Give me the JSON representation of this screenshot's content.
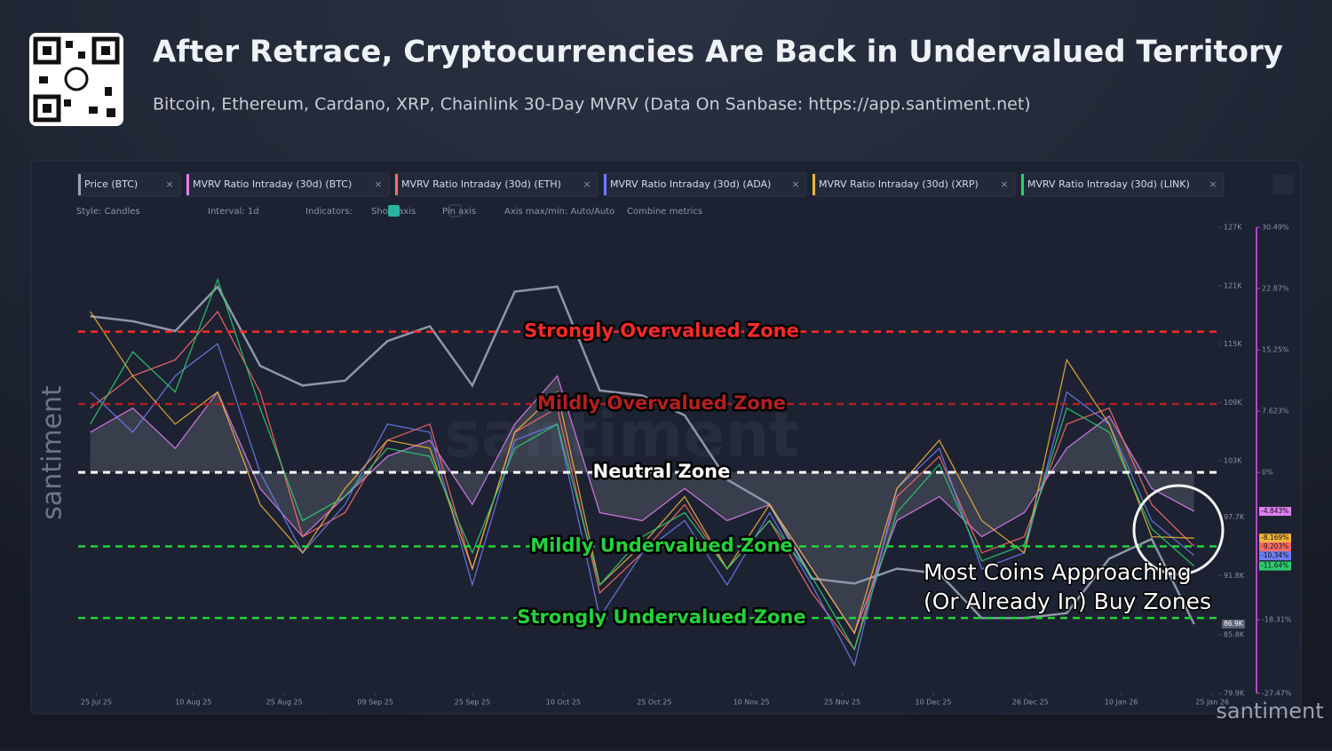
{
  "header": {
    "title": "After Retrace, Cryptocurrencies Are Back in Undervalued Territory",
    "subtitle": "Bitcoin, Ethereum, Cardano, XRP, Chainlink 30-Day MVRV (Data On Sanbase: https://app.santiment.net)"
  },
  "toolbar": [
    "Style: Candles",
    "Interval: 1d",
    "Indicators:",
    "Show axis",
    "Pin axis",
    "Axis max/min: Auto/Auto",
    "Combine metrics"
  ],
  "watermark": "santiment",
  "annotation": [
    "Most Coins Approaching",
    "(Or Already In) Buy Zones"
  ],
  "chart_data": {
    "type": "line",
    "x": [
      "2025-07-24",
      "2025-07-31",
      "2025-08-07",
      "2025-08-14",
      "2025-08-21",
      "2025-08-28",
      "2025-09-04",
      "2025-09-11",
      "2025-09-18",
      "2025-09-25",
      "2025-10-02",
      "2025-10-09",
      "2025-10-16",
      "2025-10-23",
      "2025-10-30",
      "2025-11-06",
      "2025-11-13",
      "2025-11-20",
      "2025-11-27",
      "2025-12-04",
      "2025-12-11",
      "2025-12-18",
      "2025-12-25",
      "2026-01-01",
      "2026-01-08",
      "2026-01-15",
      "2026-01-22"
    ],
    "xlim": [
      "2025-07-22",
      "2026-01-26"
    ],
    "xticks": [
      {
        "value": "2025-07-25",
        "label": "25 Jul 25"
      },
      {
        "value": "2025-08-10",
        "label": "10 Aug 25"
      },
      {
        "value": "2025-08-25",
        "label": "25 Aug 25"
      },
      {
        "value": "2025-09-09",
        "label": "09 Sep 25"
      },
      {
        "value": "2025-09-25",
        "label": "25 Sep 25"
      },
      {
        "value": "2025-10-10",
        "label": "10 Oct 25"
      },
      {
        "value": "2025-10-25",
        "label": "25 Oct 25"
      },
      {
        "value": "2025-11-10",
        "label": "10 Nov 25"
      },
      {
        "value": "2025-11-25",
        "label": "25 Nov 25"
      },
      {
        "value": "2025-12-10",
        "label": "10 Dec 25"
      },
      {
        "value": "2025-12-26",
        "label": "26 Dec 25"
      },
      {
        "value": "2026-01-10",
        "label": "10 Jan 26"
      },
      {
        "value": "2026-01-25",
        "label": "25 Jan 26"
      }
    ],
    "ylim": [
      79900,
      127000
    ],
    "yticks": [
      {
        "value": 127000,
        "label": "127K"
      },
      {
        "value": 121100,
        "label": "121K"
      },
      {
        "value": 115200,
        "label": "115K"
      },
      {
        "value": 109300,
        "label": "109K"
      },
      {
        "value": 103400,
        "label": "103K"
      },
      {
        "value": 97700,
        "label": "97.7K"
      },
      {
        "value": 91800,
        "label": "91.8K"
      },
      {
        "value": 85800,
        "label": "85.8K"
      },
      {
        "value": 79900,
        "label": "79.9K"
      }
    ],
    "y2lim": [
      -27.47,
      30.49
    ],
    "y2ticks": [
      {
        "value": 30.49,
        "label": "30.49%"
      },
      {
        "value": 22.87,
        "label": "22.87%"
      },
      {
        "value": 15.25,
        "label": "15.25%"
      },
      {
        "value": 7.623,
        "label": "7.623%"
      },
      {
        "value": 0,
        "label": "0%"
      },
      {
        "value": -18.31,
        "label": "-18.31%"
      },
      {
        "value": -27.47,
        "label": "-27.47%"
      }
    ],
    "series": [
      {
        "name": "Price (BTC)",
        "color": "#9aa3b5",
        "values": [
          118000,
          117500,
          116500,
          121000,
          113000,
          111000,
          111500,
          115500,
          117000,
          111000,
          120500,
          121000,
          110500,
          110000,
          108000,
          101500,
          99000,
          91500,
          91000,
          92500,
          92000,
          87500,
          87500,
          88000,
          93500,
          95500,
          86900
        ],
        "badge": "86.9K"
      },
      {
        "name": "MVRV Ratio Intraday (30d) (BTC)",
        "color": "#e07ef0",
        "axis": "y2",
        "values": [
          5,
          8,
          3,
          10,
          -2,
          -8,
          -3,
          2,
          4,
          -4,
          6,
          12,
          -5,
          -6,
          -2,
          -6,
          -4,
          -12,
          -20,
          -6,
          -3,
          -8,
          -5,
          3,
          7,
          -2,
          -4.843
        ],
        "badge": "-4.843%"
      },
      {
        "name": "MVRV Ratio Intraday (30d) (ETH)",
        "color": "#ff6b6b",
        "axis": "y2",
        "values": [
          8,
          12,
          14,
          20,
          10,
          -8,
          -5,
          4,
          6,
          -12,
          5,
          8,
          -15,
          -10,
          -4,
          -12,
          -6,
          -15,
          -22,
          -3,
          2,
          -10,
          -8,
          6,
          8,
          -4,
          -9.203
        ],
        "badge": "-9.203%"
      },
      {
        "name": "MVRV Ratio Intraday (30d) (ADA)",
        "color": "#6f7cf5",
        "axis": "y2",
        "values": [
          10,
          5,
          12,
          16,
          0,
          -10,
          -4,
          6,
          5,
          -14,
          4,
          6,
          -18,
          -10,
          -6,
          -14,
          -5,
          -14,
          -24,
          -2,
          3,
          -12,
          -10,
          10,
          6,
          -6,
          -10.34
        ],
        "badge": "-10.34%"
      },
      {
        "name": "MVRV Ratio Intraday (30d) (XRP)",
        "color": "#f2b33d",
        "axis": "y2",
        "values": [
          20,
          12,
          6,
          10,
          -4,
          -10,
          -2,
          4,
          3,
          -12,
          5,
          10,
          -14,
          -9,
          -3,
          -12,
          -4,
          -12,
          -20,
          -2,
          4,
          -6,
          -10,
          14,
          6,
          -8,
          -8.169
        ],
        "badge": "-8.169%"
      },
      {
        "name": "MVRV Ratio Intraday (30d) (LINK)",
        "color": "#2ecc71",
        "axis": "y2",
        "values": [
          6,
          15,
          10,
          24,
          8,
          -6,
          -3,
          3,
          2,
          -10,
          3,
          6,
          -14,
          -8,
          -5,
          -12,
          -6,
          -13,
          -22,
          -5,
          1,
          -11,
          -9,
          8,
          5,
          -7,
          -11.64
        ],
        "badge": "-11.64%"
      }
    ],
    "zones": [
      {
        "label": "Strongly Overvalued Zone",
        "value": 17.5,
        "color": "#ff2a2a"
      },
      {
        "label": "Mildly Overvalued Zone",
        "value": 8.5,
        "color": "#b32020"
      },
      {
        "label": "Neutral Zone",
        "value": 0,
        "color": "#ffffff"
      },
      {
        "label": "Mildly Undervalued Zone",
        "value": -9.2,
        "color": "#22d33a"
      },
      {
        "label": "Strongly Undervalued Zone",
        "value": -18.1,
        "color": "#22d33a"
      }
    ]
  }
}
